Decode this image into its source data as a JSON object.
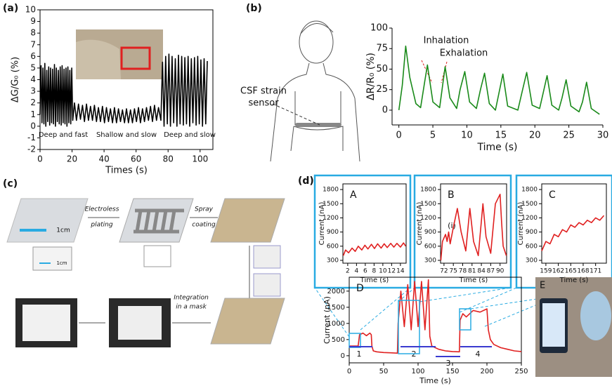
{
  "panel_labels": [
    "(a)",
    "(b)",
    "(c)",
    "(d)"
  ],
  "sensor_label": [
    "CSF strain",
    "sensor"
  ],
  "diagram_c": {
    "scale_bars": [
      "1cm",
      "1cm"
    ],
    "steps": [
      "Electroless",
      "plating",
      "Spray",
      "coating",
      "Integration",
      "in a mask"
    ]
  },
  "photo_label": "E",
  "chart_data": [
    {
      "type": "line",
      "xlabel": "Times (s)",
      "ylabel": "ΔG/G₀ (%)",
      "xlim": [
        0,
        108
      ],
      "ylim": [
        -2,
        10
      ],
      "xticks": [
        0,
        20,
        40,
        60,
        80,
        100
      ],
      "yticks": [
        -2,
        -1,
        0,
        1,
        2,
        3,
        4,
        5,
        6,
        7,
        8,
        9,
        10
      ],
      "annotations": [
        "Deep and fast",
        "Shallow and slow",
        "Deep and slow"
      ],
      "series": [
        {
          "color": "#000000",
          "x": [
            0,
            0.6,
            1.2,
            1.8,
            2.4,
            3.0,
            3.6,
            4.2,
            4.8,
            5.4,
            6.0,
            6.6,
            7.2,
            7.8,
            8.4,
            9.0,
            9.6,
            10.2,
            10.8,
            11.4,
            12.0,
            12.6,
            13.2,
            13.8,
            14.4,
            15.0,
            15.6,
            16.2,
            16.8,
            17.4,
            18.0,
            18.6,
            19.2,
            19.8,
            20.4,
            21.5,
            22.75,
            24,
            25.25,
            26.5,
            27.75,
            29,
            30.25,
            31.5,
            32.75,
            34,
            35.25,
            36.5,
            37.75,
            39,
            40.25,
            41.5,
            42.75,
            44,
            45.25,
            46.5,
            47.75,
            49,
            50.25,
            51.5,
            52.75,
            54,
            55.25,
            56.5,
            57.75,
            59,
            60.25,
            61.5,
            62.75,
            64,
            65.25,
            66.5,
            67.75,
            69,
            70.25,
            71.5,
            72.75,
            74,
            75.5,
            76.5,
            77.5,
            78.5,
            79.5,
            80.5,
            81.5,
            82.5,
            83.5,
            84.5,
            85.5,
            86.5,
            87.5,
            88.5,
            89.5,
            90.5,
            91.5,
            92.5,
            93.5,
            94.5,
            95.5,
            96.5,
            97.5,
            98.5,
            99.5,
            100.5,
            101.5,
            102.5,
            103.5,
            104.5
          ],
          "values": [
            1,
            5.2,
            0.3,
            5,
            0.2,
            5.4,
            0,
            4.8,
            0.4,
            5.1,
            0.1,
            5,
            0.3,
            4.9,
            0.2,
            5.3,
            0,
            5,
            0.4,
            4.8,
            0.2,
            5.1,
            0.1,
            5.2,
            0.3,
            4.9,
            0.2,
            5,
            0,
            5.1,
            0.3,
            4.8,
            0.2,
            5,
            0.5,
            2,
            0.5,
            1.9,
            0.6,
            1.8,
            0.4,
            1.9,
            0.5,
            1.7,
            0.5,
            1.8,
            0.4,
            1.6,
            0.4,
            1.7,
            0.3,
            1.6,
            0.4,
            1.5,
            0.3,
            1.6,
            0.3,
            1.5,
            0.4,
            1.4,
            0.3,
            1.5,
            0.3,
            1.4,
            0.3,
            1.5,
            0.4,
            1.6,
            0.3,
            1.5,
            0.4,
            1.6,
            0.5,
            1.7,
            0.4,
            1.8,
            0.5,
            1.6,
            0.5,
            5.5,
            0,
            6,
            0.2,
            6.2,
            0,
            6,
            0.3,
            5.8,
            0,
            6.1,
            0.2,
            6,
            0.1,
            5.9,
            0.2,
            6,
            0,
            5.8,
            0.3,
            5.9,
            0.1,
            6,
            0.2,
            5.7,
            0,
            5.8,
            0.2,
            5.6
          ]
        }
      ]
    },
    {
      "type": "line",
      "xlabel": "Time (s)",
      "ylabel": "ΔR/R₀ (%)",
      "xlim": [
        -1,
        30
      ],
      "ylim": [
        -18,
        100
      ],
      "xticks": [
        0,
        5,
        10,
        15,
        20,
        25,
        30
      ],
      "yticks": [
        0,
        25,
        50,
        75,
        100
      ],
      "annotations": [
        "Inhalation",
        "Exhalation"
      ],
      "series": [
        {
          "color": "#1a8a1a",
          "x": [
            0,
            0.5,
            1,
            1.6,
            2.5,
            3.2,
            3.8,
            4.2,
            5,
            6,
            6.8,
            7.5,
            8.5,
            9,
            9.7,
            10.4,
            11.4,
            12,
            12.6,
            13.3,
            14.2,
            14.7,
            15.3,
            16,
            17.5,
            18.2,
            18.8,
            19.6,
            20.7,
            21.2,
            21.8,
            22.5,
            23.5,
            24,
            24.6,
            25.3,
            26.5,
            27,
            27.6,
            28.3,
            29.5
          ],
          "values": [
            0,
            30,
            78,
            40,
            8,
            3,
            35,
            55,
            10,
            3,
            53,
            15,
            2,
            25,
            47,
            10,
            2,
            25,
            45,
            8,
            0,
            20,
            44,
            5,
            0,
            25,
            46,
            6,
            2,
            20,
            42,
            6,
            0,
            15,
            37,
            5,
            -2,
            10,
            34,
            2,
            -5
          ]
        }
      ]
    },
    {
      "type": "line",
      "title": "A",
      "xlabel": "Time (s)",
      "ylabel": "Current (nA)",
      "xlim": [
        0.9,
        15.3
      ],
      "ylim": [
        240,
        1920
      ],
      "xticks": [
        2,
        4,
        6,
        8,
        10,
        12,
        14
      ],
      "yticks": [
        300,
        600,
        900,
        1200,
        1500,
        1800
      ],
      "series": [
        {
          "color": "#e02020",
          "x": [
            1,
            1.5,
            2.2,
            3,
            3.7,
            4.4,
            5.2,
            5.9,
            6.6,
            7.4,
            8.1,
            8.8,
            9.6,
            10.3,
            11,
            11.8,
            12.5,
            13.2,
            14,
            14.7,
            15.2
          ],
          "values": [
            400,
            520,
            460,
            560,
            490,
            600,
            520,
            620,
            540,
            640,
            550,
            650,
            560,
            650,
            570,
            660,
            580,
            660,
            580,
            670,
            600
          ]
        }
      ]
    },
    {
      "type": "line",
      "title": "B",
      "xlabel": "Time (s)",
      "ylabel": "Current (nA)",
      "xlim": [
        70.9,
        92.1
      ],
      "ylim": [
        240,
        1920
      ],
      "xticks": [
        72,
        75,
        78,
        81,
        84,
        87,
        90
      ],
      "yticks": [
        300,
        600,
        900,
        1200,
        1500,
        1800
      ],
      "annotations": [
        "(i)"
      ],
      "series": [
        {
          "color": "#e02020",
          "x": [
            71,
            71.5,
            72.5,
            73,
            73.5,
            74,
            75,
            76.3,
            77.5,
            79,
            80.3,
            81.5,
            83,
            84.5,
            85.5,
            87,
            88.5,
            90,
            90.5,
            91,
            92
          ],
          "values": [
            300,
            700,
            850,
            700,
            900,
            650,
            1000,
            1400,
            900,
            500,
            1400,
            700,
            400,
            1500,
            800,
            450,
            1500,
            1700,
            1100,
            600,
            400
          ]
        }
      ]
    },
    {
      "type": "line",
      "title": "C",
      "xlabel": "Time (s)",
      "ylabel": "Current (nA)",
      "xlim": [
        158,
        173.6
      ],
      "ylim": [
        240,
        1920
      ],
      "xticks": [
        159,
        162,
        165,
        168,
        171
      ],
      "yticks": [
        300,
        600,
        900,
        1200,
        1500,
        1800
      ],
      "series": [
        {
          "color": "#e02020",
          "x": [
            158,
            159,
            160,
            161,
            162,
            163,
            164,
            165,
            166,
            167,
            168,
            169,
            170,
            171,
            172,
            173
          ],
          "values": [
            500,
            700,
            650,
            850,
            800,
            950,
            900,
            1050,
            1000,
            1100,
            1050,
            1150,
            1100,
            1200,
            1150,
            1250
          ]
        }
      ]
    },
    {
      "type": "line",
      "title": "D",
      "xlabel": "Time (s)",
      "ylabel": "Current (nA)",
      "xlim": [
        0,
        250
      ],
      "ylim": [
        -220,
        2430
      ],
      "xticks": [
        0,
        50,
        100,
        150,
        200,
        250
      ],
      "yticks": [
        0,
        500,
        1000,
        1500,
        2000
      ],
      "annotations": [
        "1",
        "2",
        "3",
        "4"
      ],
      "series": [
        {
          "color": "#e02020",
          "x": [
            0,
            5,
            10,
            13,
            15,
            20,
            25,
            30,
            32,
            33,
            35,
            40,
            50,
            60,
            70,
            71,
            75,
            80,
            85,
            90,
            95,
            100,
            105,
            110,
            115,
            117,
            120,
            130,
            140,
            150,
            160,
            161,
            165,
            170,
            180,
            190,
            200,
            202,
            205,
            210,
            220,
            230,
            240,
            250
          ],
          "values": [
            300,
            300,
            300,
            300,
            650,
            700,
            620,
            700,
            650,
            300,
            150,
            120,
            100,
            90,
            80,
            1000,
            2000,
            900,
            2200,
            800,
            2300,
            900,
            2300,
            800,
            2350,
            600,
            300,
            200,
            150,
            130,
            120,
            1100,
            1300,
            1200,
            1400,
            1350,
            1450,
            800,
            500,
            350,
            250,
            200,
            150,
            130
          ]
        }
      ]
    }
  ]
}
